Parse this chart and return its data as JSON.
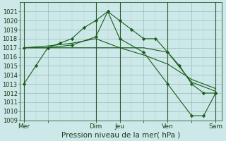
{
  "bg_color": "#cce8e8",
  "grid_major_color": "#99bbbb",
  "grid_minor_color": "#b3cccc",
  "line_color": "#1a5c1a",
  "marker_color": "#1a5c1a",
  "xlabel": "Pression niveau de la mer( hPa )",
  "ylim": [
    1009,
    1022
  ],
  "yticks": [
    1009,
    1010,
    1011,
    1012,
    1013,
    1014,
    1015,
    1016,
    1017,
    1018,
    1019,
    1020,
    1021
  ],
  "xtick_labels": [
    "Mer",
    "",
    "Dim",
    "Jeu",
    "",
    "Ven",
    "",
    "Sam"
  ],
  "xtick_positions": [
    0,
    30,
    90,
    120,
    150,
    180,
    210,
    240
  ],
  "xlim": [
    -5,
    248
  ],
  "lines": [
    {
      "x": [
        0,
        15,
        30,
        45,
        60,
        75,
        90,
        105,
        120,
        135,
        150,
        165,
        180,
        195,
        210,
        225,
        240
      ],
      "y": [
        1013,
        1015,
        1017,
        1017.5,
        1018,
        1019.2,
        1020,
        1021,
        1020,
        1019,
        1018,
        1018,
        1016.5,
        1015,
        1013,
        1012,
        1012
      ],
      "marker": "D",
      "linewidth": 0.8,
      "markersize": 2.2,
      "zorder": 5
    },
    {
      "x": [
        0,
        30,
        60,
        90,
        120,
        150,
        180,
        210,
        240
      ],
      "y": [
        1017,
        1017,
        1017,
        1017,
        1017,
        1017,
        1016.5,
        1013.2,
        1012.2
      ],
      "marker": null,
      "linewidth": 0.8,
      "markersize": 0,
      "zorder": 4
    },
    {
      "x": [
        0,
        30,
        60,
        90,
        120,
        150,
        180,
        210,
        240
      ],
      "y": [
        1017,
        1017.2,
        1017.5,
        1018,
        1017,
        1016.2,
        1015.2,
        1013.5,
        1012.5
      ],
      "marker": null,
      "linewidth": 0.8,
      "markersize": 0,
      "zorder": 4
    },
    {
      "x": [
        0,
        30,
        60,
        90,
        105,
        120,
        150,
        180,
        210,
        225,
        240
      ],
      "y": [
        1017,
        1017,
        1017.3,
        1018.2,
        1021,
        1018,
        1016.5,
        1013,
        1009.5,
        1009.5,
        1012
      ],
      "marker": "D",
      "linewidth": 0.8,
      "markersize": 2.2,
      "zorder": 5
    }
  ],
  "vlines_x": [
    0,
    90,
    120,
    180,
    240
  ],
  "fontsize_xlabel": 7.5,
  "fontsize_ytick": 6.0,
  "fontsize_xtick": 6.5
}
